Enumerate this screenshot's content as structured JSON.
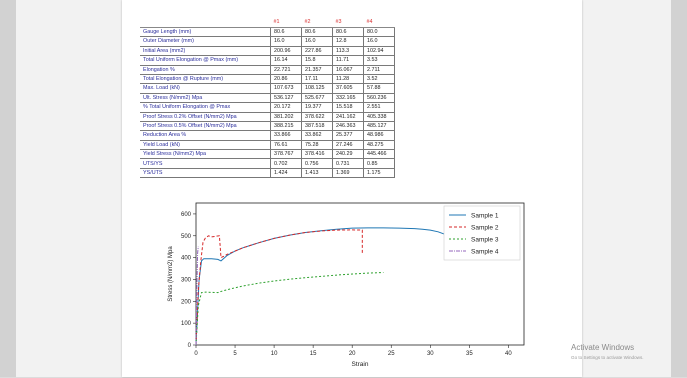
{
  "table": {
    "columns": [
      "#1",
      "#2",
      "#3",
      "#4"
    ],
    "rows": [
      {
        "label": "Gauge Length (mm)",
        "values": [
          "80.6",
          "80.6",
          "80.6",
          "80.0"
        ]
      },
      {
        "label": "Outer Diameter (mm)",
        "values": [
          "16.0",
          "16.0",
          "12.8",
          "16.0"
        ]
      },
      {
        "label": "Initial Area (mm2)",
        "values": [
          "200.96",
          "227.86",
          "113.3",
          "102.94"
        ]
      },
      {
        "label": "Total Uniform Elongation @ Pmax (mm)",
        "values": [
          "16.14",
          "15.8",
          "11.71",
          "3.53"
        ]
      },
      {
        "label": "Elongation %",
        "values": [
          "22.721",
          "21.357",
          "16.067",
          "2.711"
        ]
      },
      {
        "label": "Total Elongation @ Rupture (mm)",
        "values": [
          "20.86",
          "17.11",
          "11.28",
          "3.52"
        ]
      },
      {
        "label": "Max. Load (kN)",
        "values": [
          "107.673",
          "108.125",
          "37.605",
          "57.88"
        ]
      },
      {
        "label": "Ult. Stress (N/mm2) Mpa",
        "values": [
          "536.127",
          "525.677",
          "332.165",
          "560.236"
        ]
      },
      {
        "label": "% Total Uniform Elongation @ Pmax",
        "values": [
          "20.172",
          "19.377",
          "15.518",
          "2.551"
        ]
      },
      {
        "label": "Proof Stress 0.2% Offset (N/mm2) Mpa",
        "values": [
          "381.202",
          "378.622",
          "241.162",
          "405.338"
        ]
      },
      {
        "label": "Proof Stress 0.5% Offset (N/mm2) Mpa",
        "values": [
          "388.215",
          "387.518",
          "246.363",
          "485.127"
        ]
      },
      {
        "label": "Reduction Area %",
        "values": [
          "33.866",
          "33.862",
          "25.377",
          "48.986"
        ]
      },
      {
        "label": "Yield Load (kN)",
        "values": [
          "76.61",
          "75.28",
          "27.246",
          "48.275"
        ]
      },
      {
        "label": "Yield Stress (N/mm2) Mpa",
        "values": [
          "378.767",
          "378.416",
          "240.29",
          "445.466"
        ]
      },
      {
        "label": "UTS/YS",
        "values": [
          "0.702",
          "0.756",
          "0.731",
          "0.85"
        ]
      },
      {
        "label": "YS/UTS",
        "values": [
          "1.424",
          "1.413",
          "1.369",
          "1.175"
        ]
      }
    ]
  },
  "chart_data": {
    "type": "line",
    "xlabel": "Strain",
    "ylabel": "Stress (N/mm2) Mpa",
    "xlim": [
      0,
      42
    ],
    "ylim": [
      0,
      650
    ],
    "xticks": [
      "0",
      "5",
      "10",
      "15",
      "20",
      "25",
      "30",
      "35",
      "40"
    ],
    "yticks": [
      "0",
      "100",
      "200",
      "300",
      "400",
      "500",
      "600"
    ],
    "legend_position": "top-right",
    "series": [
      {
        "name": "Sample 1",
        "color": "#1f77b4",
        "dash": "",
        "x": [
          0,
          0.4,
          0.7,
          1,
          2,
          2.8,
          3.2,
          4,
          5,
          6,
          8,
          10,
          12,
          14,
          16,
          18,
          20,
          22,
          24,
          26,
          28,
          29,
          30,
          31,
          32,
          32.8
        ],
        "y": [
          0,
          300,
          385,
          395,
          395,
          392,
          385,
          410,
          430,
          445,
          468,
          488,
          503,
          515,
          523,
          530,
          535,
          536,
          536,
          535,
          533,
          530,
          526,
          518,
          505,
          480
        ]
      },
      {
        "name": "Sample 2",
        "color": "#d62728",
        "dash": "3,2",
        "x": [
          0,
          0.3,
          0.6,
          0.9,
          1.2,
          1.6,
          2,
          2.6,
          3,
          3.2,
          3.5,
          4,
          5,
          6,
          8,
          10,
          12,
          14,
          16,
          18,
          20,
          21.3,
          21.3
        ],
        "y": [
          0,
          250,
          380,
          470,
          490,
          500,
          495,
          498,
          500,
          400,
          405,
          415,
          430,
          445,
          468,
          488,
          503,
          515,
          522,
          526,
          527,
          526,
          420
        ]
      },
      {
        "name": "Sample 3",
        "color": "#2ca02c",
        "dash": "2,2",
        "x": [
          0,
          0.3,
          0.7,
          1.2,
          2,
          2.8,
          3,
          4,
          5,
          6,
          8,
          10,
          12,
          14,
          16,
          18,
          20,
          22,
          24
        ],
        "y": [
          0,
          180,
          240,
          242,
          241,
          240,
          243,
          253,
          262,
          270,
          283,
          293,
          301,
          308,
          314,
          320,
          325,
          329,
          332
        ]
      },
      {
        "name": "Sample 4",
        "color": "#9467bd",
        "dash": "4,1,1,1",
        "x": [
          0,
          0.1,
          0.2,
          0.3
        ],
        "y": [
          0,
          250,
          420,
          450
        ]
      }
    ]
  },
  "watermark": {
    "title": "Activate Windows",
    "subtitle": "Go to Settings to activate Windows."
  }
}
